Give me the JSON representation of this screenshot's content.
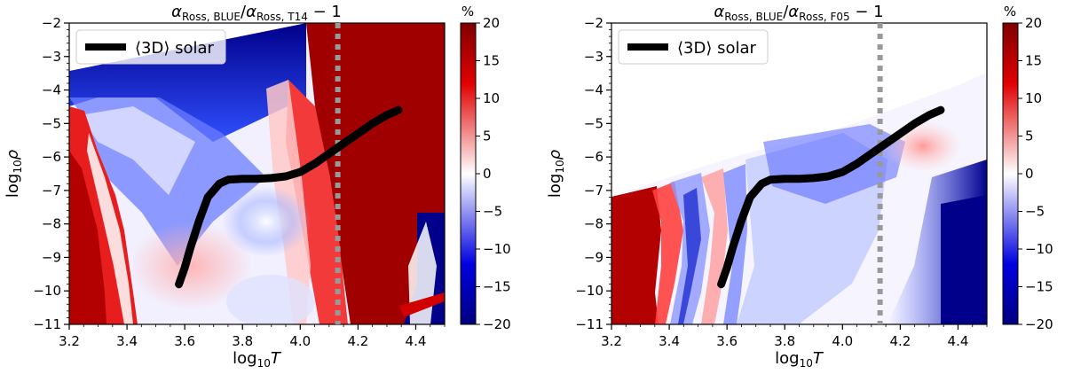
{
  "chart_data": [
    {
      "type": "heatmap",
      "title": "α_Ross, BLUE/α_Ross, T14 − 1",
      "xlabel": "log10T",
      "ylabel": "log10ρ",
      "xlim": [
        3.2,
        4.5
      ],
      "ylim": [
        -11,
        -2
      ],
      "xticks": [
        "3.2",
        "3.4",
        "3.6",
        "3.8",
        "4.0",
        "4.2",
        "4.4"
      ],
      "yticks": [
        "−2",
        "−3",
        "−4",
        "−5",
        "−6",
        "−7",
        "−8",
        "−9",
        "−10",
        "−11"
      ],
      "colorbar": {
        "label": "%",
        "range": [
          -20,
          20
        ],
        "ticks": [
          "20",
          "15",
          "10",
          "5",
          "0",
          "−5",
          "−10",
          "−15",
          "−20"
        ],
        "colors": [
          "#00007f",
          "#ffffff",
          "#7f0000"
        ]
      },
      "reference_line": {
        "x": 4.13,
        "style": "dotted",
        "color": "#999999"
      },
      "legend": {
        "position": "top-left",
        "entries": [
          "⟨3D⟩ solar"
        ]
      },
      "grid": false,
      "series": [
        {
          "name": "⟨3D⟩ solar",
          "x": [
            3.58,
            3.6,
            3.62,
            3.65,
            3.68,
            3.72,
            3.75,
            3.8,
            3.85,
            3.9,
            3.95,
            4.0,
            4.05,
            4.1,
            4.15,
            4.2,
            4.25,
            4.3,
            4.34
          ],
          "y": [
            -9.8,
            -9.3,
            -8.7,
            -7.9,
            -7.2,
            -6.8,
            -6.68,
            -6.65,
            -6.65,
            -6.63,
            -6.58,
            -6.45,
            -6.2,
            -5.9,
            -5.6,
            -5.3,
            -5.0,
            -4.75,
            -4.6
          ]
        }
      ]
    },
    {
      "type": "heatmap",
      "title": "α_Ross, BLUE/α_Ross, F05 − 1",
      "xlabel": "log10T",
      "ylabel": "log10ρ",
      "xlim": [
        3.2,
        4.5
      ],
      "ylim": [
        -11,
        -2
      ],
      "xticks": [
        "3.2",
        "3.4",
        "3.6",
        "3.8",
        "4.0",
        "4.2",
        "4.4"
      ],
      "yticks": [
        "−2",
        "−3",
        "−4",
        "−5",
        "−6",
        "−7",
        "−8",
        "−9",
        "−10",
        "−11"
      ],
      "colorbar": {
        "label": "%",
        "range": [
          -20,
          20
        ],
        "ticks": [
          "20",
          "15",
          "10",
          "5",
          "0",
          "−5",
          "−10",
          "−15",
          "−20"
        ],
        "colors": [
          "#00007f",
          "#ffffff",
          "#7f0000"
        ]
      },
      "reference_line": {
        "x": 4.13,
        "style": "dotted",
        "color": "#999999"
      },
      "legend": {
        "position": "top-left",
        "entries": [
          "⟨3D⟩ solar"
        ]
      },
      "grid": false,
      "series": [
        {
          "name": "⟨3D⟩ solar",
          "x": [
            3.58,
            3.6,
            3.62,
            3.65,
            3.68,
            3.72,
            3.75,
            3.8,
            3.85,
            3.9,
            3.95,
            4.0,
            4.05,
            4.1,
            4.15,
            4.2,
            4.25,
            4.3,
            4.34
          ],
          "y": [
            -9.8,
            -9.3,
            -8.7,
            -7.9,
            -7.2,
            -6.8,
            -6.68,
            -6.65,
            -6.65,
            -6.63,
            -6.58,
            -6.45,
            -6.2,
            -5.9,
            -5.6,
            -5.3,
            -5.0,
            -4.75,
            -4.6
          ]
        }
      ]
    }
  ]
}
